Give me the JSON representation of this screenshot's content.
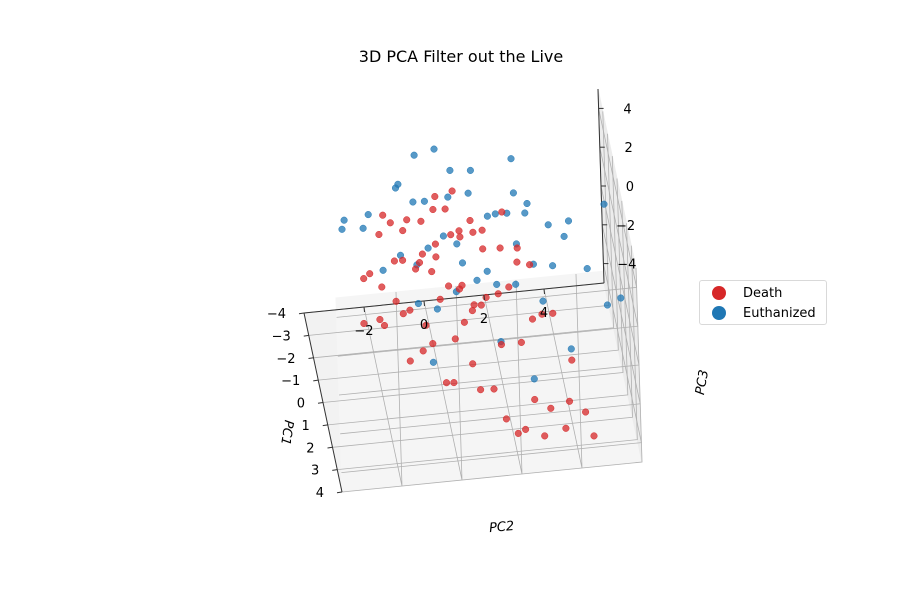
{
  "chart_data": {
    "type": "scatter",
    "projection": "3d",
    "title": "3D PCA Filter out the Live",
    "xlabel": "PC1",
    "ylabel": "PC2",
    "zlabel": "PC3",
    "x_ticks": [
      -4,
      -3,
      -2,
      -1,
      0,
      1,
      2,
      3,
      4
    ],
    "y_ticks": [
      -2,
      0,
      2,
      4
    ],
    "z_ticks": [
      -4,
      -2,
      0,
      2,
      4
    ],
    "x_tick_labels": [
      "−4",
      "−3",
      "−2",
      "−1",
      "0",
      "1",
      "2",
      "3",
      "4"
    ],
    "y_tick_labels": [
      "−2",
      "0",
      "2",
      "4"
    ],
    "z_tick_labels": [
      "−4",
      "−2",
      "0",
      "2",
      "4"
    ],
    "xlim": [
      -4,
      4
    ],
    "ylim": [
      -4,
      6
    ],
    "zlim": [
      -5,
      5
    ],
    "grid": true,
    "legend_position": "right",
    "series": [
      {
        "name": "Death",
        "color": "#d62728",
        "points": [
          [
            -3.5,
            0.4,
            0.9
          ],
          [
            -3.2,
            -0.6,
            0.2
          ],
          [
            -3.0,
            1.1,
            -0.4
          ],
          [
            -2.8,
            -1.2,
            0.6
          ],
          [
            -2.6,
            0.2,
            1.3
          ],
          [
            -2.5,
            1.8,
            0.1
          ],
          [
            -2.3,
            -0.9,
            -0.8
          ],
          [
            -2.1,
            0.7,
            0.5
          ],
          [
            -2.0,
            -1.7,
            1.0
          ],
          [
            -1.9,
            2.3,
            -0.2
          ],
          [
            -1.8,
            -0.3,
            0.0
          ],
          [
            -1.7,
            1.3,
            1.6
          ],
          [
            -1.6,
            -2.1,
            -0.5
          ],
          [
            -1.5,
            0.1,
            0.8
          ],
          [
            -1.4,
            2.8,
            0.3
          ],
          [
            -1.3,
            -1.0,
            1.9
          ],
          [
            -1.2,
            0.9,
            -1.1
          ],
          [
            -1.1,
            -0.5,
            0.4
          ],
          [
            -1.0,
            1.6,
            0.9
          ],
          [
            -0.9,
            -2.4,
            0.1
          ],
          [
            -0.8,
            0.4,
            -0.6
          ],
          [
            -0.7,
            3.1,
            0.2
          ],
          [
            -0.6,
            -1.4,
            1.2
          ],
          [
            -0.5,
            2.0,
            -0.9
          ],
          [
            -0.4,
            -0.2,
            0.7
          ],
          [
            -0.3,
            1.1,
            -1.4
          ],
          [
            -0.2,
            -1.9,
            0.4
          ],
          [
            -0.1,
            2.6,
            1.1
          ],
          [
            0.0,
            0.0,
            -0.3
          ],
          [
            0.1,
            -0.8,
            1.5
          ],
          [
            0.2,
            1.5,
            -0.2
          ],
          [
            0.3,
            -2.6,
            -0.8
          ],
          [
            0.4,
            0.6,
            0.6
          ],
          [
            0.5,
            3.3,
            -1.0
          ],
          [
            0.6,
            -1.1,
            0.0
          ],
          [
            0.7,
            2.2,
            0.8
          ],
          [
            0.8,
            -0.4,
            -1.6
          ],
          [
            0.9,
            1.0,
            0.3
          ],
          [
            1.0,
            -1.6,
            1.0
          ],
          [
            1.1,
            2.9,
            -0.5
          ],
          [
            1.2,
            0.3,
            -1.0
          ],
          [
            1.3,
            -2.2,
            0.5
          ],
          [
            1.4,
            1.8,
            -1.3
          ],
          [
            1.5,
            -0.7,
            0.2
          ],
          [
            1.6,
            0.8,
            -1.9
          ],
          [
            1.7,
            3.5,
            0.4
          ],
          [
            1.8,
            -1.3,
            -1.2
          ],
          [
            1.9,
            2.4,
            -0.7
          ],
          [
            2.0,
            0.1,
            -2.3
          ],
          [
            2.1,
            -0.9,
            -0.4
          ],
          [
            2.2,
            1.4,
            -2.6
          ],
          [
            2.3,
            4.0,
            -1.4
          ],
          [
            2.4,
            -0.2,
            -1.8
          ],
          [
            2.5,
            2.7,
            -3.0
          ],
          [
            2.6,
            0.9,
            -2.1
          ],
          [
            2.7,
            3.2,
            -3.3
          ],
          [
            2.8,
            1.7,
            -3.5
          ],
          [
            2.9,
            3.8,
            -2.8
          ],
          [
            3.0,
            2.3,
            -3.9
          ],
          [
            3.1,
            4.3,
            -3.2
          ],
          [
            3.2,
            2.9,
            -4.1
          ],
          [
            3.3,
            3.6,
            -3.7
          ],
          [
            3.4,
            2.0,
            -3.6
          ],
          [
            3.5,
            4.5,
            -4.0
          ],
          [
            -2.9,
            0.9,
            1.8
          ],
          [
            -2.4,
            -1.5,
            1.5
          ],
          [
            -1.8,
            0.5,
            2.2
          ],
          [
            -1.2,
            -0.4,
            2.4
          ],
          [
            -0.6,
            0.8,
            2.1
          ],
          [
            0.0,
            -0.1,
            1.9
          ],
          [
            -3.3,
            1.6,
            -0.9
          ],
          [
            -2.7,
            2.5,
            0.7
          ],
          [
            0.6,
            0.7,
            -0.9
          ],
          [
            1.2,
            1.2,
            0.6
          ],
          [
            -0.3,
            -1.2,
            -1.2
          ],
          [
            0.9,
            -2.0,
            -0.3
          ]
        ]
      },
      {
        "name": "Euthanized",
        "color": "#1f77b4",
        "points": [
          [
            -3.6,
            -0.8,
            1.6
          ],
          [
            -3.3,
            0.9,
            2.4
          ],
          [
            -3.0,
            -1.9,
            0.9
          ],
          [
            -2.7,
            1.5,
            3.0
          ],
          [
            -2.4,
            -0.1,
            2.0
          ],
          [
            -2.2,
            2.6,
            1.2
          ],
          [
            -2.0,
            -1.1,
            3.3
          ],
          [
            -1.8,
            0.6,
            2.8
          ],
          [
            -1.6,
            3.2,
            2.3
          ],
          [
            -1.4,
            -2.3,
            2.1
          ],
          [
            -1.2,
            1.2,
            3.6
          ],
          [
            -1.0,
            3.8,
            1.8
          ],
          [
            -0.8,
            -0.7,
            3.9
          ],
          [
            -0.6,
            2.0,
            3.1
          ],
          [
            -0.4,
            4.4,
            2.6
          ],
          [
            -0.2,
            0.2,
            2.7
          ],
          [
            0.0,
            2.9,
            3.7
          ],
          [
            0.2,
            -1.3,
            2.4
          ],
          [
            0.4,
            1.6,
            4.2
          ],
          [
            0.6,
            4.1,
            3.0
          ],
          [
            0.8,
            0.5,
            3.4
          ],
          [
            1.0,
            3.0,
            2.2
          ],
          [
            1.2,
            -0.9,
            3.0
          ],
          [
            1.4,
            2.4,
            3.8
          ],
          [
            1.6,
            4.7,
            2.4
          ],
          [
            1.8,
            1.0,
            2.6
          ],
          [
            2.0,
            3.5,
            3.2
          ],
          [
            2.2,
            -0.4,
            1.8
          ],
          [
            2.4,
            2.2,
            2.9
          ],
          [
            2.6,
            5.2,
            1.6
          ],
          [
            -2.6,
            0.3,
            4.4
          ],
          [
            -1.5,
            2.7,
            4.8
          ],
          [
            0.3,
            5.5,
            4.1
          ],
          [
            -3.8,
            -2.6,
            -0.2
          ],
          [
            -2.9,
            -2.8,
            0.4
          ],
          [
            -3.4,
            3.0,
            0.8
          ],
          [
            1.5,
            5.8,
            0.6
          ],
          [
            -0.5,
            -1.8,
            0.9
          ],
          [
            0.7,
            1.8,
            1.0
          ],
          [
            -1.1,
            -0.2,
            1.1
          ],
          [
            2.8,
            1.6,
            0.5
          ],
          [
            3.0,
            3.9,
            0.0
          ],
          [
            -2.3,
            1.9,
            -1.8
          ],
          [
            -1.7,
            -0.5,
            -2.4
          ],
          [
            0.1,
            3.4,
            -0.8
          ],
          [
            1.1,
            0.4,
            1.3
          ],
          [
            -0.9,
            0.9,
            0.4
          ],
          [
            2.3,
            -0.6,
            -0.8
          ],
          [
            3.3,
            2.6,
            -1.0
          ],
          [
            -3.1,
            -0.3,
            3.6
          ]
        ]
      }
    ]
  }
}
